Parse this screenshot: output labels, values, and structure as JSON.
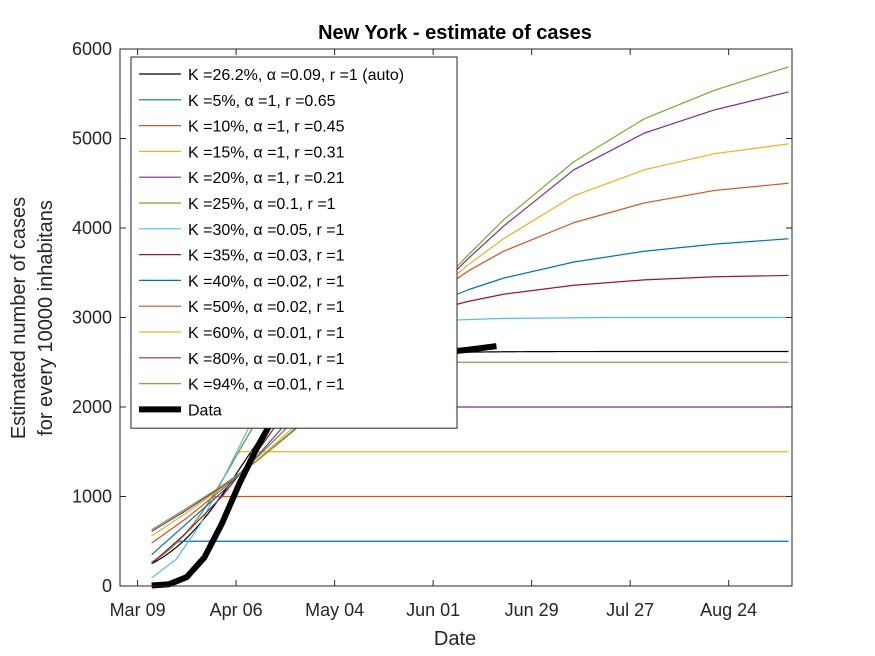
{
  "chart_data": {
    "type": "line",
    "title": "New York - estimate of cases",
    "xlabel": "Date",
    "ylabel": [
      "Estimated number of cases",
      "for every 10000 inhabitans"
    ],
    "x_start": "Mar 13",
    "x_end": "Sep 10",
    "xlim": [
      "Mar 04",
      "Sep 11"
    ],
    "ylim": [
      0,
      6000
    ],
    "xticks": [
      "Mar 09",
      "Apr 06",
      "May 04",
      "Jun 01",
      "Jun 29",
      "Jul 27",
      "Aug 24"
    ],
    "yticks": [
      0,
      1000,
      2000,
      3000,
      4000,
      5000,
      6000
    ],
    "grid": false,
    "legend_position": "top-left",
    "series": [
      {
        "name": "K =26.2%, α =0.09, r =1 (auto)",
        "color": "#000000",
        "kind": "logistic",
        "K": 2620,
        "t0": 25,
        "s": 11.1,
        "points": []
      },
      {
        "name": "K =5%, α =1, r =0.65",
        "color": "#0072BD",
        "kind": "capped",
        "K": 500,
        "points": []
      },
      {
        "name": "K =10%, α =1, r =0.45",
        "color": "#D95319",
        "kind": "capped",
        "K": 1000,
        "points": []
      },
      {
        "name": "K =15%, α =1, r =0.31",
        "color": "#EDB120",
        "kind": "capped",
        "K": 1500,
        "points": []
      },
      {
        "name": "K =20%, α =1, r =0.21",
        "color": "#7E2F8E",
        "kind": "capped",
        "K": 2000,
        "points": []
      },
      {
        "name": "K =25%, α =0.1, r =1",
        "color": "#77AC30",
        "kind": "capped",
        "K": 2500,
        "points": []
      },
      {
        "name": "K =30%, α =0.05, r =1",
        "color": "#4DBEEE",
        "kind": "points",
        "points": [
          [
            0,
            90
          ],
          [
            7,
            300
          ],
          [
            14,
            700
          ],
          [
            21,
            1250
          ],
          [
            28,
            1800
          ],
          [
            35,
            2250
          ],
          [
            42,
            2550
          ],
          [
            49,
            2700
          ],
          [
            60,
            2850
          ],
          [
            70,
            2920
          ],
          [
            85,
            2970
          ],
          [
            100,
            2990
          ],
          [
            130,
            3000
          ],
          [
            181,
            3000
          ]
        ]
      },
      {
        "name": "K =35%, α =0.03, r =1",
        "color": "#A2142F",
        "kind": "points",
        "points": [
          [
            0,
            250
          ],
          [
            10,
            600
          ],
          [
            20,
            1000
          ],
          [
            30,
            1500
          ],
          [
            40,
            2050
          ],
          [
            50,
            2450
          ],
          [
            60,
            2780
          ],
          [
            70,
            2960
          ],
          [
            80,
            3080
          ],
          [
            90,
            3180
          ],
          [
            100,
            3260
          ],
          [
            120,
            3360
          ],
          [
            140,
            3420
          ],
          [
            160,
            3455
          ],
          [
            181,
            3470
          ]
        ]
      },
      {
        "name": "K =40%, α =0.02, r =1",
        "color": "#0072BD",
        "kind": "points",
        "points": [
          [
            0,
            350
          ],
          [
            10,
            700
          ],
          [
            20,
            1050
          ],
          [
            30,
            1450
          ],
          [
            40,
            1900
          ],
          [
            50,
            2300
          ],
          [
            60,
            2700
          ],
          [
            70,
            2950
          ],
          [
            80,
            3150
          ],
          [
            90,
            3310
          ],
          [
            100,
            3440
          ],
          [
            120,
            3620
          ],
          [
            140,
            3740
          ],
          [
            160,
            3820
          ],
          [
            181,
            3880
          ]
        ]
      },
      {
        "name": "K =50%, α =0.02, r =1",
        "color": "#D95319",
        "kind": "points",
        "points": [
          [
            0,
            480
          ],
          [
            10,
            760
          ],
          [
            20,
            1080
          ],
          [
            30,
            1440
          ],
          [
            40,
            1830
          ],
          [
            50,
            2230
          ],
          [
            60,
            2620
          ],
          [
            70,
            2950
          ],
          [
            80,
            3250
          ],
          [
            90,
            3520
          ],
          [
            100,
            3740
          ],
          [
            120,
            4060
          ],
          [
            140,
            4280
          ],
          [
            160,
            4420
          ],
          [
            181,
            4500
          ]
        ]
      },
      {
        "name": "K =60%, α =0.01, r =1",
        "color": "#EDB120",
        "kind": "points",
        "points": [
          [
            0,
            560
          ],
          [
            10,
            820
          ],
          [
            20,
            1100
          ],
          [
            30,
            1410
          ],
          [
            40,
            1760
          ],
          [
            50,
            2130
          ],
          [
            60,
            2520
          ],
          [
            70,
            2900
          ],
          [
            80,
            3260
          ],
          [
            90,
            3590
          ],
          [
            100,
            3880
          ],
          [
            120,
            4360
          ],
          [
            140,
            4650
          ],
          [
            160,
            4830
          ],
          [
            181,
            4940
          ]
        ]
      },
      {
        "name": "K =80%, α =0.01, r =1",
        "color": "#7E2F8E",
        "kind": "points",
        "points": [
          [
            0,
            610
          ],
          [
            10,
            850
          ],
          [
            20,
            1110
          ],
          [
            30,
            1400
          ],
          [
            40,
            1730
          ],
          [
            50,
            2090
          ],
          [
            60,
            2480
          ],
          [
            70,
            2880
          ],
          [
            80,
            3270
          ],
          [
            90,
            3660
          ],
          [
            100,
            4020
          ],
          [
            120,
            4650
          ],
          [
            140,
            5060
          ],
          [
            160,
            5320
          ],
          [
            181,
            5520
          ]
        ]
      },
      {
        "name": "K =94%, α =0.01, r =1",
        "color": "#77AC30",
        "kind": "points",
        "points": [
          [
            0,
            630
          ],
          [
            10,
            870
          ],
          [
            20,
            1120
          ],
          [
            30,
            1400
          ],
          [
            40,
            1720
          ],
          [
            50,
            2080
          ],
          [
            60,
            2470
          ],
          [
            70,
            2880
          ],
          [
            80,
            3290
          ],
          [
            90,
            3700
          ],
          [
            100,
            4090
          ],
          [
            120,
            4740
          ],
          [
            140,
            5220
          ],
          [
            160,
            5540
          ],
          [
            181,
            5800
          ]
        ]
      },
      {
        "name": "Data",
        "color": "#000000",
        "kind": "points",
        "points": [
          [
            0,
            5
          ],
          [
            5,
            20
          ],
          [
            10,
            100
          ],
          [
            15,
            320
          ],
          [
            20,
            700
          ],
          [
            25,
            1150
          ],
          [
            30,
            1550
          ],
          [
            35,
            1900
          ],
          [
            40,
            2130
          ],
          [
            45,
            2280
          ],
          [
            50,
            2380
          ],
          [
            55,
            2450
          ],
          [
            60,
            2500
          ],
          [
            70,
            2560
          ],
          [
            80,
            2600
          ],
          [
            90,
            2640
          ],
          [
            98,
            2680
          ]
        ]
      }
    ]
  }
}
